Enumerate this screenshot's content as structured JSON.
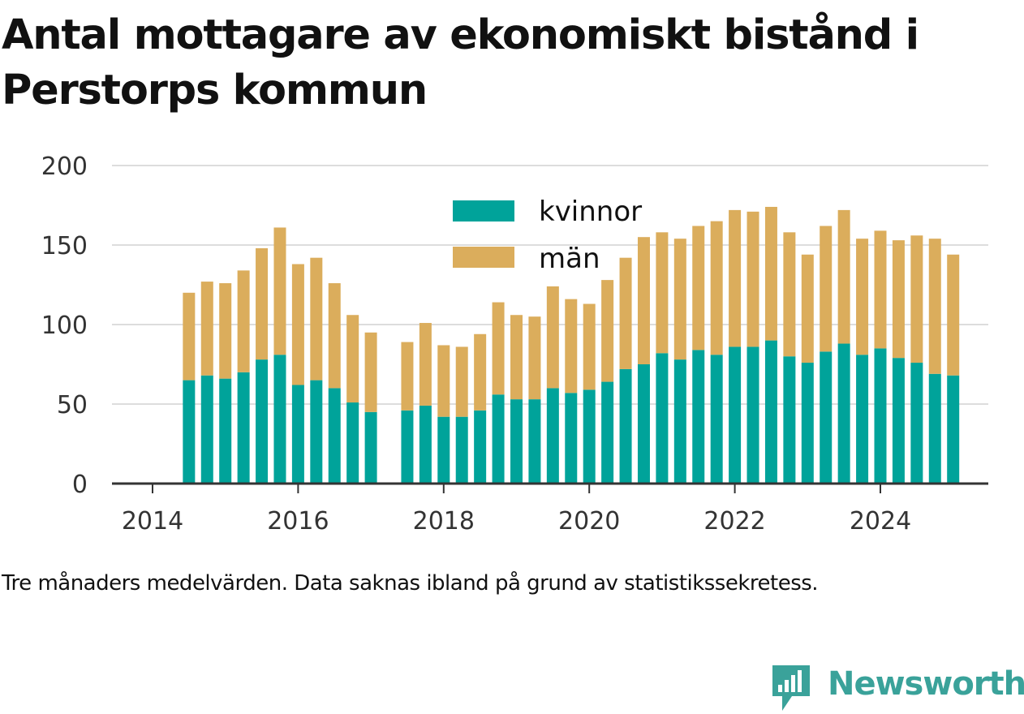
{
  "title": "Antal mottagare av ekonomiskt bistånd i Perstorps kommun",
  "caption": "Tre månaders medelvärden. Data saknas ibland på grund av statistikssekretess.",
  "brand": {
    "name": "Newsworthy",
    "color": "#3aa29a",
    "icon": "newsworthy-logo-icon"
  },
  "colors": {
    "kvinnor": "#00a39a",
    "man": "#dbad5c",
    "grid": "#dddddd",
    "axis": "#333333"
  },
  "chart_data": {
    "type": "bar",
    "stacked": true,
    "ylim": [
      0,
      200
    ],
    "yticks": [
      0,
      50,
      100,
      150,
      200
    ],
    "xticks": [
      "2014",
      "2016",
      "2018",
      "2020",
      "2022",
      "2024"
    ],
    "xlim": [
      "2014-01",
      "2026-01"
    ],
    "grid": true,
    "legend": {
      "position": "top-center",
      "entries": [
        "kvinnor",
        "män"
      ]
    },
    "x": [
      "2014-07",
      "2014-10",
      "2015-01",
      "2015-04",
      "2015-07",
      "2015-10",
      "2016-01",
      "2016-04",
      "2016-07",
      "2016-10",
      "2017-01",
      "2017-07",
      "2017-10",
      "2018-01",
      "2018-04",
      "2018-07",
      "2018-10",
      "2019-01",
      "2019-04",
      "2019-07",
      "2019-10",
      "2020-01",
      "2020-04",
      "2020-07",
      "2020-10",
      "2021-01",
      "2021-04",
      "2021-07",
      "2021-10",
      "2022-01",
      "2022-04",
      "2022-07",
      "2022-10",
      "2023-01",
      "2023-04",
      "2023-07",
      "2023-10",
      "2024-01",
      "2024-04",
      "2024-07",
      "2024-10",
      "2025-01"
    ],
    "series": [
      {
        "name": "kvinnor",
        "values": [
          65,
          68,
          66,
          70,
          78,
          81,
          62,
          65,
          60,
          51,
          45,
          46,
          49,
          42,
          42,
          46,
          56,
          53,
          53,
          60,
          57,
          59,
          64,
          72,
          75,
          82,
          78,
          84,
          81,
          86,
          86,
          90,
          80,
          76,
          83,
          88,
          81,
          85,
          79,
          76,
          69,
          68
        ]
      },
      {
        "name": "män",
        "values": [
          55,
          59,
          60,
          64,
          70,
          80,
          76,
          77,
          66,
          55,
          50,
          43,
          52,
          45,
          44,
          48,
          58,
          53,
          52,
          64,
          59,
          54,
          64,
          70,
          80,
          76,
          76,
          78,
          84,
          86,
          85,
          84,
          78,
          68,
          79,
          84,
          73,
          74,
          74,
          80,
          85,
          76
        ]
      }
    ]
  }
}
